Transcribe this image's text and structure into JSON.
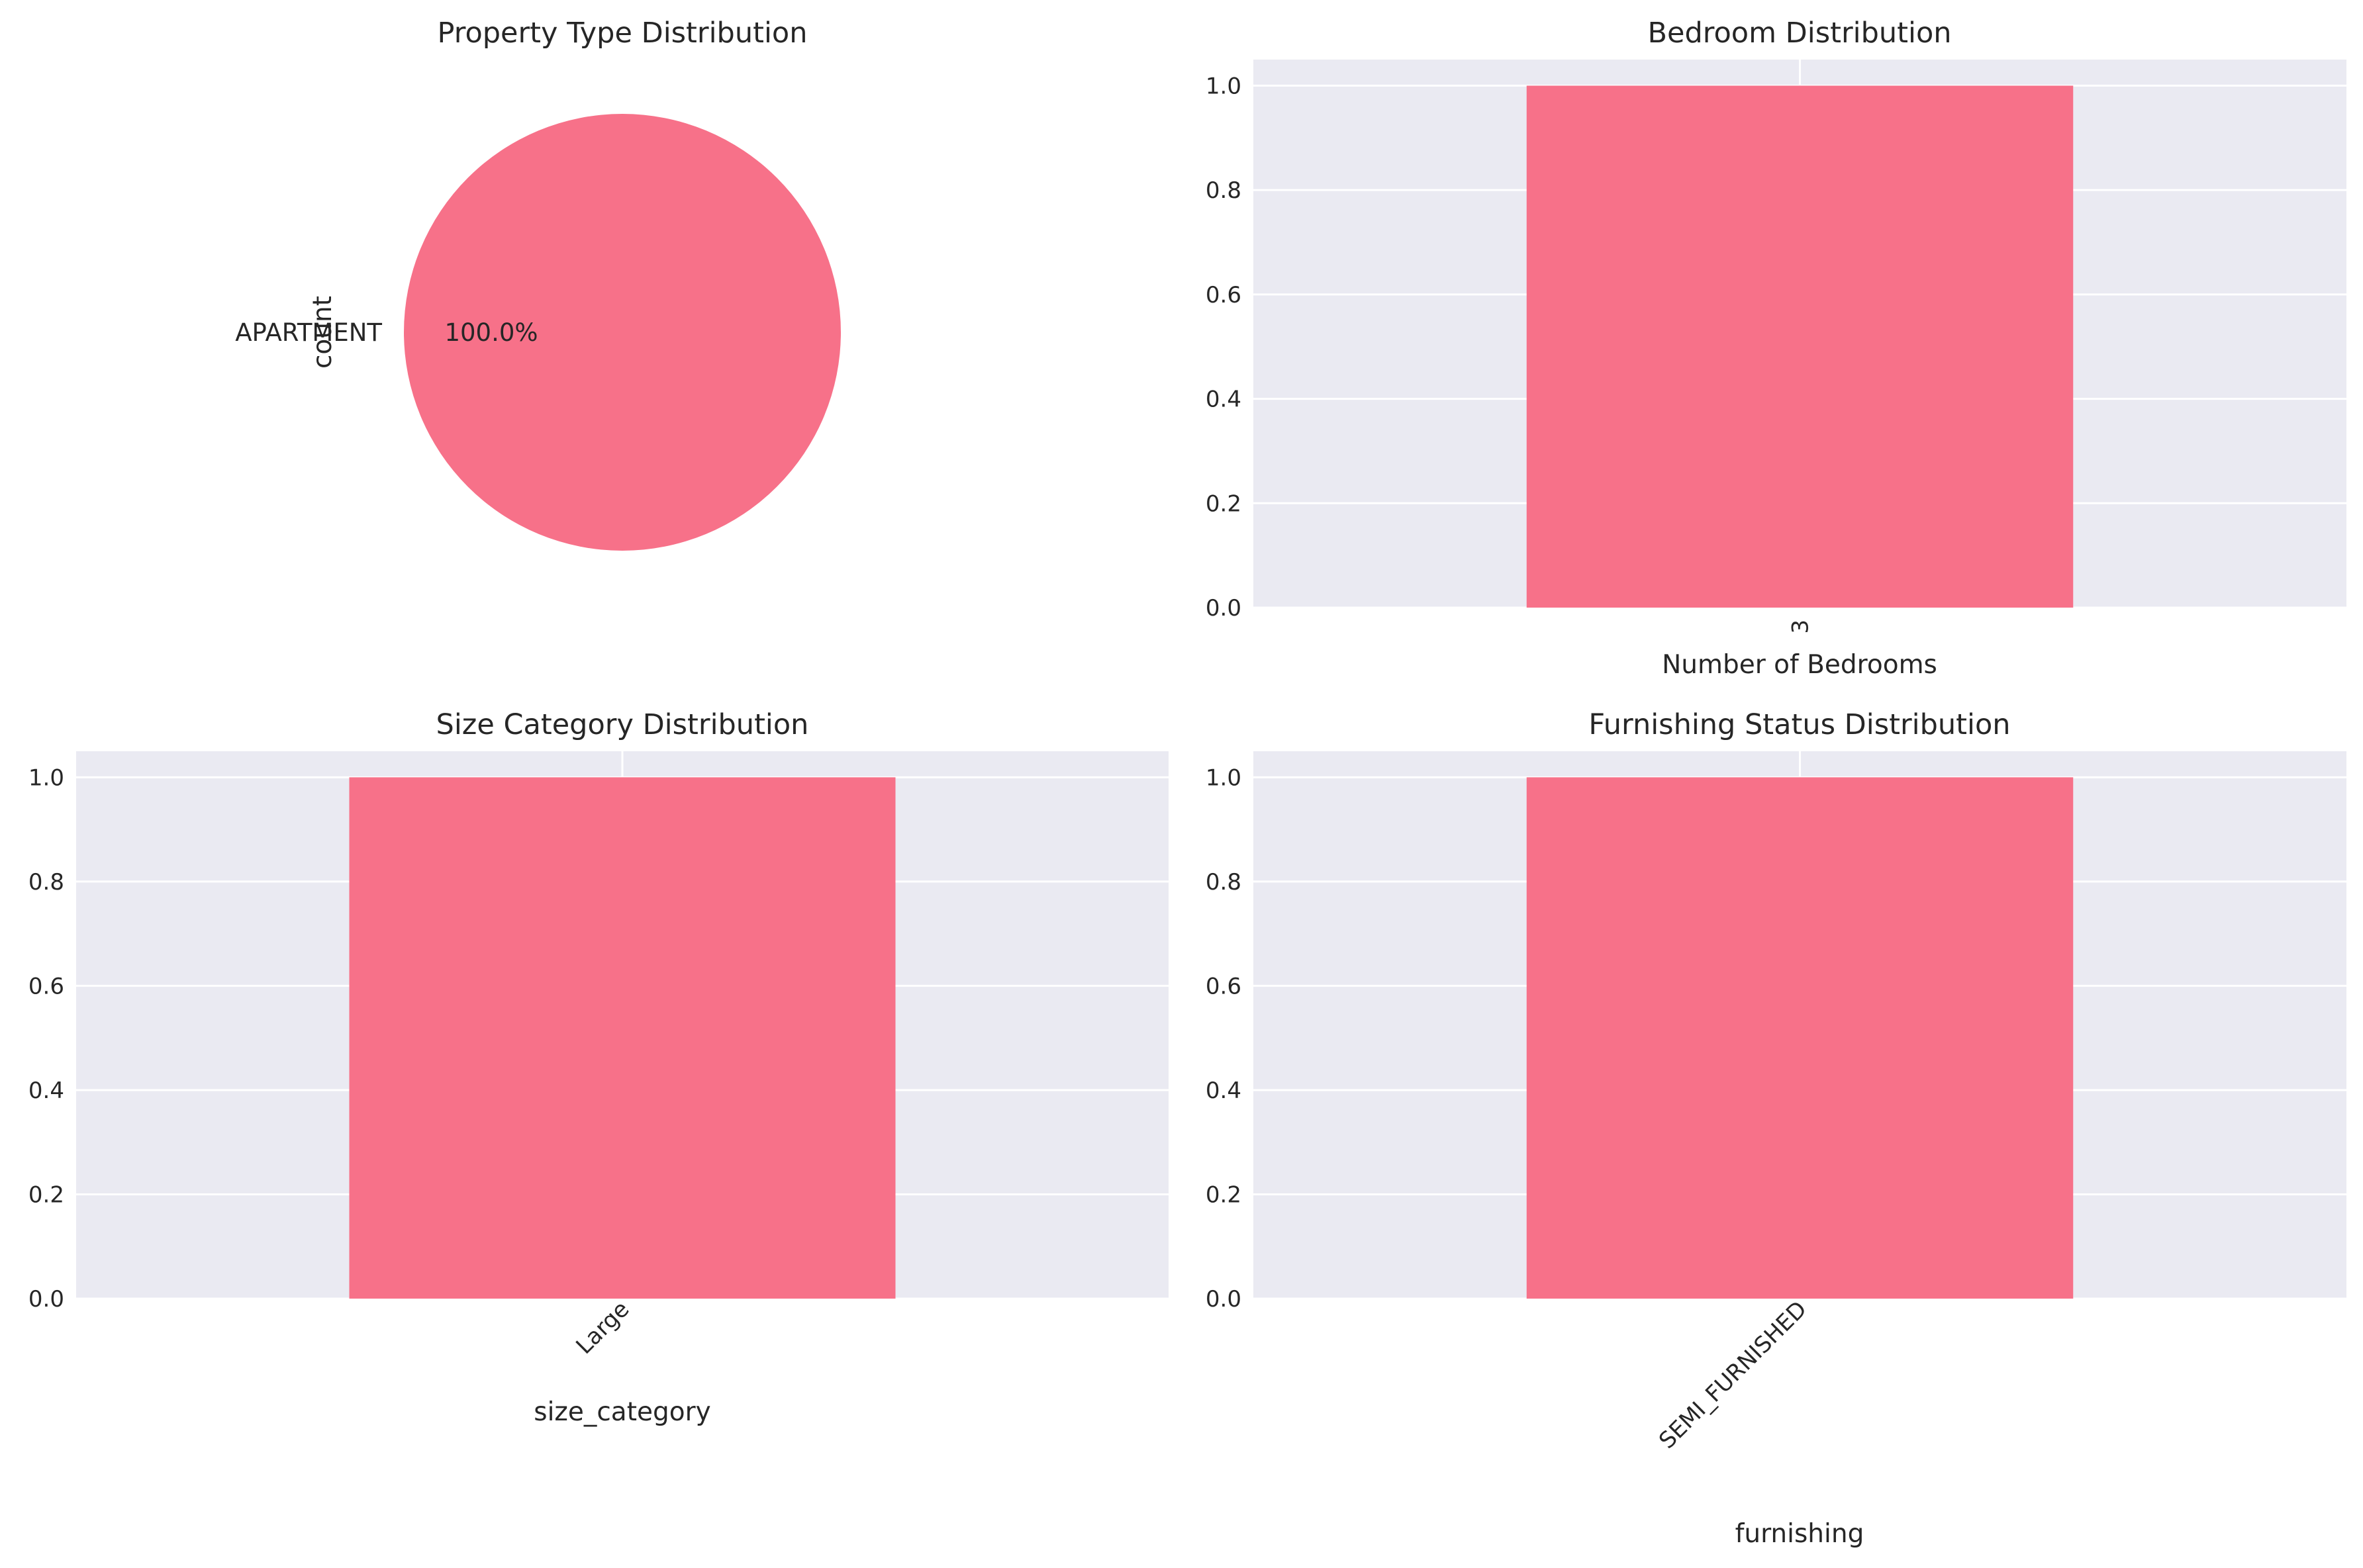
{
  "colors": {
    "bar": "#f77189",
    "axes_bg": "#eaeaf2",
    "grid": "#ffffff",
    "text": "#262626"
  },
  "chart_data": [
    {
      "type": "pie",
      "title": "Property Type Distribution",
      "ylabel": "count",
      "labels": [
        "APARTMENT"
      ],
      "values": [
        1
      ],
      "autopct": [
        "100.0%"
      ]
    },
    {
      "type": "bar",
      "title": "Bedroom Distribution",
      "xlabel": "Number of Bedrooms",
      "ylabel": "",
      "categories": [
        "3"
      ],
      "values": [
        1.0
      ],
      "ylim": [
        0,
        1.05
      ],
      "yticks": [
        "0.0",
        "0.2",
        "0.4",
        "0.6",
        "0.8",
        "1.0"
      ],
      "xtick_rotation": 90,
      "grid": true
    },
    {
      "type": "bar",
      "title": "Size Category Distribution",
      "xlabel": "size_category",
      "ylabel": "",
      "categories": [
        "Large"
      ],
      "values": [
        1.0
      ],
      "ylim": [
        0,
        1.05
      ],
      "yticks": [
        "0.0",
        "0.2",
        "0.4",
        "0.6",
        "0.8",
        "1.0"
      ],
      "xtick_rotation": 45,
      "grid": true
    },
    {
      "type": "bar",
      "title": "Furnishing Status Distribution",
      "xlabel": "furnishing",
      "ylabel": "",
      "categories": [
        "SEMI_FURNISHED"
      ],
      "values": [
        1.0
      ],
      "ylim": [
        0,
        1.05
      ],
      "yticks": [
        "0.0",
        "0.2",
        "0.4",
        "0.6",
        "0.8",
        "1.0"
      ],
      "xtick_rotation": 45,
      "grid": true
    }
  ]
}
